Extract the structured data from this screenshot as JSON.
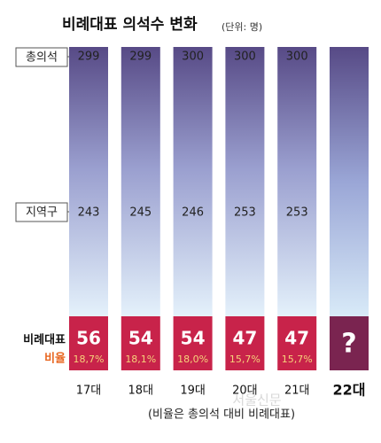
{
  "chart_data": {
    "type": "column-infographic",
    "title": "비례대표 의석수 변화",
    "subtitle": "(단위: 명)",
    "categories": [
      "17대",
      "18대",
      "19대",
      "20대",
      "21대",
      "22대"
    ],
    "series": [
      {
        "name": "총의석",
        "color": "#5a4f8c",
        "values": [
          299,
          299,
          300,
          300,
          300,
          null
        ]
      },
      {
        "name": "지역구",
        "color": "#c9d8ee",
        "values": [
          243,
          245,
          246,
          253,
          253,
          null
        ]
      },
      {
        "name": "비례대표",
        "color": "#c8234a",
        "values": [
          56,
          54,
          54,
          47,
          47,
          null
        ]
      },
      {
        "name": "비율",
        "color": "#e8651f",
        "values": [
          18.7,
          18.1,
          18.0,
          15.7,
          15.7,
          null
        ],
        "value_labels": [
          "18,7%",
          "18,1%",
          "18,0%",
          "15,7%",
          "15,7%",
          null
        ]
      }
    ],
    "placeholder": "?",
    "footnote": "(비율은 총의석 대비 비례대표)",
    "watermark": "서울신문"
  }
}
